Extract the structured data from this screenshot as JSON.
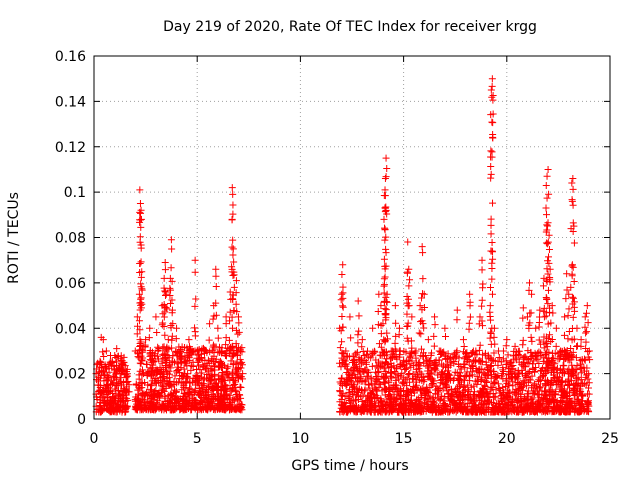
{
  "chart_data": {
    "type": "scatter",
    "title": "Day 219 of 2020, Rate Of TEC Index for receiver krgg",
    "xlabel": "GPS time / hours",
    "ylabel": "ROTI / TECUs",
    "xlim": [
      0,
      25
    ],
    "ylim": [
      0,
      0.16
    ],
    "xticks": [
      0,
      5,
      10,
      15,
      20,
      25
    ],
    "xtick_labels": [
      "0",
      "5",
      "10",
      "15",
      "20",
      "25"
    ],
    "yticks": [
      0,
      0.02,
      0.04,
      0.06,
      0.08,
      0.1,
      0.12,
      0.14,
      0.16
    ],
    "ytick_labels": [
      "0",
      "0.02",
      "0.04",
      "0.06",
      "0.08",
      "0.1",
      "0.12",
      "0.14",
      "0.16"
    ],
    "grid": true,
    "marker": "+",
    "color": "#ff0000",
    "series": [
      {
        "points": [
          [
            0.1,
            0.02
          ],
          [
            0.2,
            0.015
          ],
          [
            0.3,
            0.025
          ],
          [
            0.35,
            0.036
          ],
          [
            0.45,
            0.035
          ],
          [
            0.5,
            0.012
          ],
          [
            0.6,
            0.03
          ],
          [
            0.7,
            0.018
          ],
          [
            0.8,
            0.028
          ],
          [
            0.9,
            0.01
          ],
          [
            1.0,
            0.022
          ],
          [
            1.1,
            0.031
          ],
          [
            1.2,
            0.008
          ],
          [
            1.3,
            0.016
          ],
          [
            1.4,
            0.024
          ],
          [
            1.5,
            0.006
          ],
          [
            1.6,
            0.019
          ],
          [
            1.7,
            0.012
          ],
          [
            2.0,
            0.03
          ],
          [
            2.1,
            0.045
          ],
          [
            2.2,
            0.055
          ],
          [
            2.22,
            0.101
          ],
          [
            2.25,
            0.095
          ],
          [
            2.28,
            0.092
          ],
          [
            2.3,
            0.088
          ],
          [
            2.4,
            0.02
          ],
          [
            2.5,
            0.035
          ],
          [
            2.6,
            0.015
          ],
          [
            2.7,
            0.04
          ],
          [
            2.8,
            0.025
          ],
          [
            3.0,
            0.045
          ],
          [
            3.1,
            0.03
          ],
          [
            3.2,
            0.02
          ],
          [
            3.3,
            0.05
          ],
          [
            3.4,
            0.062
          ],
          [
            3.45,
            0.069
          ],
          [
            3.5,
            0.055
          ],
          [
            3.6,
            0.035
          ],
          [
            3.7,
            0.062
          ],
          [
            3.75,
            0.079
          ],
          [
            3.8,
            0.048
          ],
          [
            3.9,
            0.025
          ],
          [
            4.0,
            0.04
          ],
          [
            4.2,
            0.03
          ],
          [
            4.4,
            0.02
          ],
          [
            4.6,
            0.035
          ],
          [
            4.8,
            0.025
          ],
          [
            4.9,
            0.07
          ],
          [
            5.0,
            0.03
          ],
          [
            5.2,
            0.015
          ],
          [
            5.4,
            0.022
          ],
          [
            5.6,
            0.042
          ],
          [
            5.8,
            0.05
          ],
          [
            5.9,
            0.066
          ],
          [
            6.0,
            0.04
          ],
          [
            6.2,
            0.03
          ],
          [
            6.4,
            0.045
          ],
          [
            6.6,
            0.056
          ],
          [
            6.7,
            0.102
          ],
          [
            6.72,
            0.099
          ],
          [
            6.75,
            0.075
          ],
          [
            6.8,
            0.058
          ],
          [
            6.9,
            0.061
          ],
          [
            7.0,
            0.045
          ],
          [
            7.1,
            0.03
          ],
          [
            7.2,
            0.02
          ],
          [
            11.9,
            0.04
          ],
          [
            12.0,
            0.055
          ],
          [
            12.05,
            0.068
          ],
          [
            12.2,
            0.03
          ],
          [
            12.4,
            0.045
          ],
          [
            12.6,
            0.025
          ],
          [
            12.8,
            0.052
          ],
          [
            13.0,
            0.035
          ],
          [
            13.2,
            0.025
          ],
          [
            13.5,
            0.04
          ],
          [
            13.8,
            0.055
          ],
          [
            13.9,
            0.05
          ],
          [
            14.0,
            0.042
          ],
          [
            14.05,
            0.088
          ],
          [
            14.1,
            0.101
          ],
          [
            14.12,
            0.106
          ],
          [
            14.15,
            0.115
          ],
          [
            14.2,
            0.055
          ],
          [
            14.4,
            0.03
          ],
          [
            14.6,
            0.05
          ],
          [
            14.8,
            0.04
          ],
          [
            15.0,
            0.025
          ],
          [
            15.2,
            0.078
          ],
          [
            15.25,
            0.066
          ],
          [
            15.4,
            0.045
          ],
          [
            15.6,
            0.03
          ],
          [
            15.8,
            0.05
          ],
          [
            15.9,
            0.076
          ],
          [
            16.0,
            0.055
          ],
          [
            16.2,
            0.035
          ],
          [
            16.5,
            0.045
          ],
          [
            16.8,
            0.03
          ],
          [
            17.0,
            0.04
          ],
          [
            17.3,
            0.025
          ],
          [
            17.6,
            0.048
          ],
          [
            17.9,
            0.035
          ],
          [
            18.2,
            0.055
          ],
          [
            18.5,
            0.03
          ],
          [
            18.7,
            0.045
          ],
          [
            18.8,
            0.07
          ],
          [
            19.0,
            0.025
          ],
          [
            19.2,
            0.05
          ],
          [
            19.25,
            0.145
          ],
          [
            19.3,
            0.15
          ],
          [
            19.4,
            0.04
          ],
          [
            19.6,
            0.03
          ],
          [
            19.8,
            0.02
          ],
          [
            20.0,
            0.035
          ],
          [
            20.2,
            0.025
          ],
          [
            20.4,
            0.032
          ],
          [
            20.6,
            0.02
          ],
          [
            20.8,
            0.049
          ],
          [
            21.0,
            0.045
          ],
          [
            21.1,
            0.06
          ],
          [
            21.2,
            0.055
          ],
          [
            21.4,
            0.04
          ],
          [
            21.6,
            0.048
          ],
          [
            21.8,
            0.062
          ],
          [
            21.9,
            0.093
          ],
          [
            21.95,
            0.107
          ],
          [
            22.0,
            0.11
          ],
          [
            22.05,
            0.081
          ],
          [
            22.1,
            0.066
          ],
          [
            22.2,
            0.05
          ],
          [
            22.4,
            0.04
          ],
          [
            22.6,
            0.03
          ],
          [
            22.8,
            0.045
          ],
          [
            22.9,
            0.064
          ],
          [
            23.0,
            0.055
          ],
          [
            23.1,
            0.058
          ],
          [
            23.15,
            0.104
          ],
          [
            23.2,
            0.106
          ],
          [
            23.25,
            0.085
          ],
          [
            23.4,
            0.04
          ],
          [
            23.6,
            0.035
          ],
          [
            23.8,
            0.045
          ],
          [
            23.9,
            0.05
          ],
          [
            24.0,
            0.03
          ]
        ],
        "bands": [
          {
            "x": [
              0.1,
              1.7
            ],
            "y": [
              0.003,
              0.028
            ],
            "n": 260
          },
          {
            "x": [
              2.0,
              7.2
            ],
            "y": [
              0.004,
              0.032
            ],
            "n": 900
          },
          {
            "x": [
              11.9,
              24.0
            ],
            "y": [
              0.003,
              0.03
            ],
            "n": 1900
          }
        ]
      }
    ]
  }
}
